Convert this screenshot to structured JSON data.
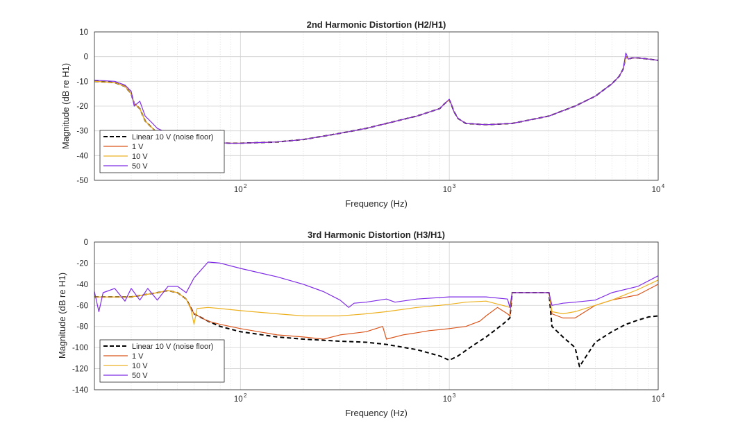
{
  "chart_data": [
    {
      "type": "line",
      "title": "2nd Harmonic Distortion (H2/H1)",
      "xlabel": "Frequency (Hz)",
      "ylabel": "Magnitude (dB re H1)",
      "xscale": "log",
      "xlim": [
        20,
        10000
      ],
      "ylim": [
        -50,
        10
      ],
      "yticks": [
        10,
        0,
        -10,
        -20,
        -30,
        -40,
        -50
      ],
      "ytick_labels": [
        "10",
        "0",
        "-10",
        "-20",
        "-30",
        "-40",
        "-50"
      ],
      "xtick_labels": [
        {
          "base": "10",
          "exp": "2",
          "value": 100
        },
        {
          "base": "10",
          "exp": "3",
          "value": 1000
        },
        {
          "base": "10",
          "exp": "4",
          "value": 10000
        }
      ],
      "grid": true,
      "legend_position": "bottom-left",
      "legend": [
        "Linear 10 V (noise floor)",
        "1 V",
        "10 V",
        "50 V"
      ],
      "series": [
        {
          "name": "Linear 10 V (noise floor)",
          "color": "#000000",
          "dashed": true,
          "x": [
            20,
            25,
            28,
            30,
            31,
            33,
            35,
            38,
            40,
            45,
            50,
            60,
            70,
            80,
            90,
            100,
            150,
            200,
            300,
            400,
            500,
            700,
            900,
            950,
            1000,
            1020,
            1050,
            1100,
            1200,
            1500,
            2000,
            3000,
            4000,
            5000,
            6000,
            6500,
            6800,
            7000,
            7200,
            7500,
            8000,
            9000,
            10000
          ],
          "y": [
            -10,
            -10.5,
            -12,
            -15,
            -19,
            -21,
            -26,
            -29,
            -31,
            -32.5,
            -33.5,
            -34,
            -34.5,
            -34.8,
            -35,
            -35,
            -34.5,
            -33.5,
            -31,
            -29,
            -27,
            -24,
            -21,
            -19,
            -17.5,
            -19,
            -22,
            -25,
            -27,
            -27.5,
            -27,
            -24,
            -20,
            -16,
            -11,
            -8,
            -5,
            0,
            -1,
            -0.5,
            -0.5,
            -1,
            -1.5
          ]
        },
        {
          "name": "1 V",
          "color": "#d95319",
          "dashed": false,
          "x": [
            20,
            25,
            28,
            30,
            31,
            33,
            35,
            38,
            40,
            45,
            50,
            60,
            70,
            80,
            90,
            100,
            150,
            200,
            300,
            400,
            500,
            700,
            900,
            950,
            1000,
            1020,
            1050,
            1100,
            1200,
            1500,
            2000,
            3000,
            4000,
            5000,
            6000,
            6500,
            6800,
            7000,
            7200,
            7500,
            8000,
            9000,
            10000
          ],
          "y": [
            -10,
            -10.5,
            -12,
            -15,
            -19,
            -21,
            -26,
            -29,
            -31,
            -32.5,
            -33.5,
            -34,
            -34.5,
            -34.8,
            -35,
            -35,
            -34.5,
            -33.5,
            -31,
            -29,
            -27,
            -24,
            -21,
            -19,
            -17.5,
            -19,
            -22,
            -25,
            -27,
            -27.5,
            -27,
            -24,
            -20,
            -16,
            -11,
            -8,
            -5,
            0,
            -1,
            -0.5,
            -0.5,
            -1,
            -1.5
          ]
        },
        {
          "name": "10 V",
          "color": "#edb120",
          "dashed": false,
          "x": [
            20,
            25,
            28,
            30,
            31,
            33,
            35,
            38,
            40,
            45,
            50,
            60,
            70,
            80,
            90,
            100,
            150,
            200,
            300,
            400,
            500,
            700,
            900,
            950,
            1000,
            1020,
            1050,
            1100,
            1200,
            1500,
            2000,
            3000,
            4000,
            5000,
            6000,
            6500,
            6800,
            7000,
            7200,
            7500,
            8000,
            9000,
            10000
          ],
          "y": [
            -10,
            -10.5,
            -12,
            -15,
            -19,
            -21,
            -26,
            -29,
            -31,
            -32.5,
            -33.5,
            -34,
            -34.5,
            -34.8,
            -35,
            -35,
            -34.5,
            -33.5,
            -31,
            -29,
            -27,
            -24,
            -21,
            -19,
            -17.5,
            -19,
            -22,
            -25,
            -27,
            -27.5,
            -27,
            -24,
            -20,
            -16,
            -11,
            -8,
            -5,
            0,
            -1,
            -0.5,
            -0.5,
            -1,
            -1.5
          ]
        },
        {
          "name": "50 V",
          "color": "#7e2ae6",
          "dashed": false,
          "x": [
            20,
            25,
            28,
            30,
            31,
            33,
            35,
            38,
            40,
            45,
            50,
            60,
            70,
            80,
            90,
            100,
            150,
            200,
            300,
            400,
            500,
            700,
            900,
            950,
            1000,
            1020,
            1050,
            1100,
            1200,
            1500,
            2000,
            3000,
            4000,
            5000,
            6000,
            6500,
            6800,
            7000,
            7200,
            7500,
            8000,
            9000,
            10000
          ],
          "y": [
            -9.5,
            -10,
            -11.5,
            -14,
            -20,
            -18,
            -24,
            -27,
            -29,
            -31,
            -33,
            -33.5,
            -34.5,
            -34.8,
            -35,
            -35,
            -34.5,
            -33.5,
            -31,
            -29,
            -27,
            -24,
            -21,
            -19,
            -17.2,
            -19,
            -22,
            -25,
            -27,
            -27.5,
            -27,
            -24,
            -20,
            -16,
            -11,
            -8,
            -5,
            1.5,
            -1,
            -0.5,
            -0.5,
            -1,
            -1.5
          ]
        }
      ]
    },
    {
      "type": "line",
      "title": "3rd Harmonic Distortion (H3/H1)",
      "xlabel": "Frequency (Hz)",
      "ylabel": "Magnitude (dB re H1)",
      "xscale": "log",
      "xlim": [
        20,
        10000
      ],
      "ylim": [
        -140,
        0
      ],
      "yticks": [
        0,
        -20,
        -40,
        -60,
        -80,
        -100,
        -120,
        -140
      ],
      "ytick_labels": [
        "0",
        "-20",
        "-40",
        "-60",
        "-80",
        "-100",
        "-120",
        "-140"
      ],
      "xtick_labels": [
        {
          "base": "10",
          "exp": "2",
          "value": 100
        },
        {
          "base": "10",
          "exp": "3",
          "value": 1000
        },
        {
          "base": "10",
          "exp": "4",
          "value": 10000
        }
      ],
      "grid": true,
      "legend_position": "bottom-left",
      "legend": [
        "Linear 10 V (noise floor)",
        "1 V",
        "10 V",
        "50 V"
      ],
      "series": [
        {
          "name": "Linear 10 V (noise floor)",
          "color": "#000000",
          "dashed": true,
          "x": [
            20,
            30,
            40,
            45,
            50,
            55,
            60,
            70,
            80,
            100,
            150,
            200,
            300,
            400,
            500,
            700,
            900,
            1000,
            1100,
            1300,
            1500,
            1800,
            1950,
            2000,
            2100,
            2500,
            2900,
            3000,
            3100,
            3500,
            4000,
            4200,
            5000,
            6000,
            7000,
            8000,
            9000,
            10000
          ],
          "y": [
            -52,
            -52,
            -48,
            -46,
            -48,
            -54,
            -68,
            -75,
            -80,
            -85,
            -90,
            -92,
            -94,
            -95,
            -97,
            -102,
            -108,
            -112,
            -108,
            -98,
            -90,
            -78,
            -72,
            -48,
            -48,
            -48,
            -48,
            -48,
            -80,
            -90,
            -100,
            -118,
            -95,
            -85,
            -78,
            -74,
            -71,
            -70
          ]
        },
        {
          "name": "1 V",
          "color": "#d95319",
          "dashed": false,
          "x": [
            20,
            30,
            40,
            45,
            50,
            55,
            60,
            70,
            80,
            100,
            150,
            200,
            250,
            300,
            400,
            480,
            500,
            600,
            700,
            800,
            900,
            1000,
            1200,
            1400,
            1500,
            1700,
            1900,
            1950,
            2000,
            2500,
            3000,
            3100,
            3500,
            4000,
            5000,
            6000,
            8000,
            10000
          ],
          "y": [
            -52,
            -52,
            -48,
            -46,
            -48,
            -54,
            -68,
            -75,
            -78,
            -82,
            -88,
            -90,
            -92,
            -88,
            -85,
            -80,
            -92,
            -88,
            -86,
            -84,
            -83,
            -82,
            -80,
            -75,
            -70,
            -62,
            -68,
            -70,
            -48,
            -48,
            -48,
            -68,
            -72,
            -72,
            -60,
            -55,
            -50,
            -40
          ]
        },
        {
          "name": "10 V",
          "color": "#edb120",
          "dashed": false,
          "x": [
            20,
            30,
            40,
            45,
            50,
            55,
            58,
            60,
            62,
            70,
            80,
            100,
            150,
            200,
            300,
            400,
            500,
            700,
            900,
            1000,
            1200,
            1500,
            1800,
            1950,
            2000,
            2500,
            3000,
            3100,
            3500,
            4000,
            5000,
            6000,
            8000,
            10000
          ],
          "y": [
            -52,
            -52,
            -48,
            -46,
            -48,
            -54,
            -64,
            -78,
            -63,
            -62,
            -63,
            -65,
            -68,
            -70,
            -70,
            -68,
            -66,
            -62,
            -60,
            -59,
            -57,
            -56,
            -60,
            -62,
            -48,
            -48,
            -48,
            -66,
            -68,
            -66,
            -60,
            -55,
            -45,
            -36
          ]
        },
        {
          "name": "50 V",
          "color": "#7e2ae6",
          "dashed": false,
          "x": [
            20,
            21,
            22,
            25,
            28,
            30,
            33,
            36,
            40,
            45,
            50,
            55,
            60,
            70,
            80,
            100,
            150,
            200,
            250,
            300,
            330,
            350,
            400,
            500,
            550,
            700,
            1000,
            1500,
            1900,
            1950,
            2000,
            2500,
            3000,
            3100,
            3500,
            4000,
            5000,
            6000,
            8000,
            10000
          ],
          "y": [
            -47,
            -66,
            -48,
            -44,
            -56,
            -44,
            -55,
            -44,
            -55,
            -42,
            -42,
            -48,
            -34,
            -19,
            -20,
            -25,
            -33,
            -40,
            -47,
            -55,
            -62,
            -58,
            -57,
            -54,
            -57,
            -54,
            -52,
            -52,
            -54,
            -62,
            -48,
            -48,
            -48,
            -60,
            -58,
            -57,
            -55,
            -48,
            -42,
            -32
          ]
        }
      ]
    }
  ]
}
